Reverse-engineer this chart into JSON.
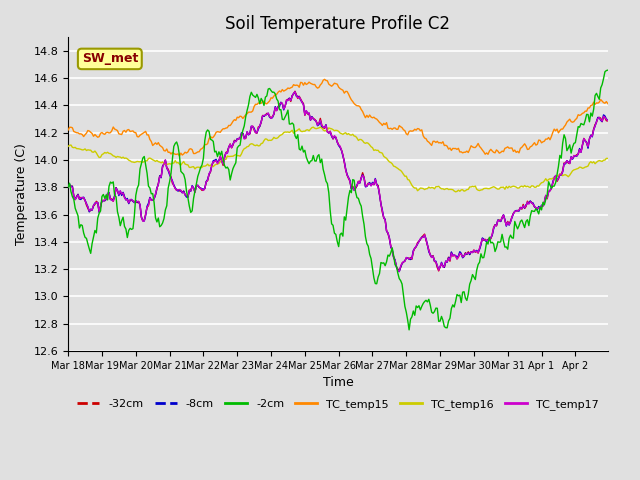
{
  "title": "Soil Temperature Profile C2",
  "xlabel": "Time",
  "ylabel": "Temperature (C)",
  "ylim": [
    12.6,
    14.9
  ],
  "yticks": [
    12.6,
    12.8,
    13.0,
    13.2,
    13.4,
    13.6,
    13.8,
    14.0,
    14.2,
    14.4,
    14.6,
    14.8
  ],
  "bg_color": "#e0e0e0",
  "plot_bg_color": "#e0e0e0",
  "grid_color": "#ffffff",
  "line_colors": {
    "32cm": "#cc0000",
    "8cm": "#0000cc",
    "2cm": "#00bb00",
    "TC_temp15": "#ff8800",
    "TC_temp16": "#cccc00",
    "TC_temp17": "#cc00cc"
  },
  "annotation_box": {
    "text": "SW_met",
    "bg": "#ffff99",
    "border": "#999900",
    "text_color": "#880000"
  },
  "legend_labels": [
    "-32cm",
    "-8cm",
    "-2cm",
    "TC_temp15",
    "TC_temp16",
    "TC_temp17"
  ],
  "legend_colors": [
    "#cc0000",
    "#0000cc",
    "#00bb00",
    "#ff8800",
    "#cccc00",
    "#cc00cc"
  ],
  "legend_dashes": [
    "--",
    "--",
    "-",
    "-",
    "-",
    "-"
  ],
  "xtick_dates": [
    "Mar 18",
    "Mar 19",
    "Mar 20",
    "Mar 21",
    "Mar 22",
    "Mar 23",
    "Mar 24",
    "Mar 25",
    "Mar 26",
    "Mar 27",
    "Mar 28",
    "Mar 29",
    "Mar 30",
    "Mar 31",
    "Apr 1",
    "Apr 2"
  ]
}
